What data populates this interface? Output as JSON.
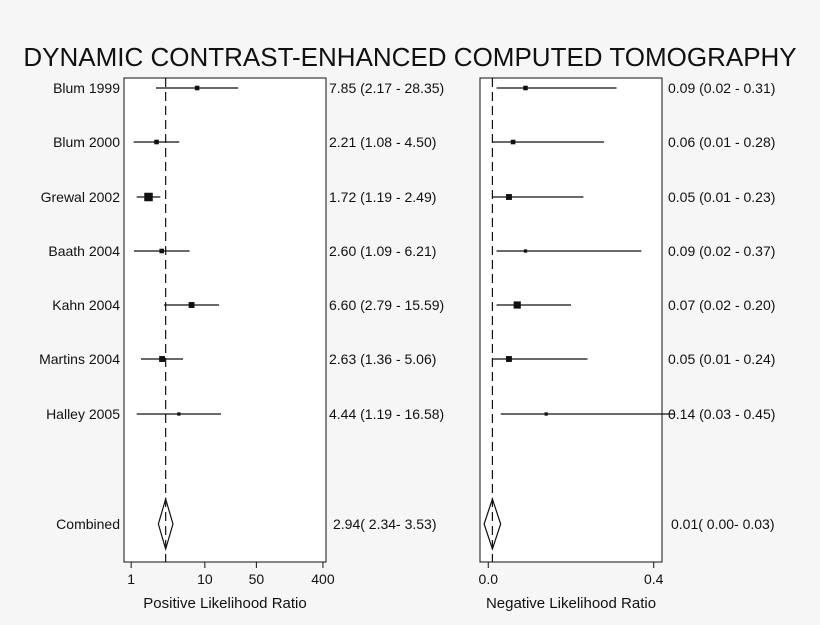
{
  "chart_data": {
    "type": "forest",
    "title": "DYNAMIC CONTRAST-ENHANCED COMPUTED TOMOGRAPHY",
    "studies": [
      "Blum 1999",
      "Blum 2000",
      "Grewal 2002",
      "Baath 2004",
      "Kahn 2004",
      "Martins 2004",
      "Halley 2005"
    ],
    "combined_label": "Combined",
    "positive": {
      "xlabel": "Positive Likelihood Ratio",
      "scale": "log",
      "xlim": [
        0.8,
        440
      ],
      "ticks": [
        1,
        10,
        50,
        400
      ],
      "tick_labels": [
        "1",
        "10",
        "50",
        "400"
      ],
      "reference": 2.94,
      "estimates": [
        7.85,
        2.21,
        1.72,
        2.6,
        6.6,
        2.63,
        4.44
      ],
      "lower": [
        2.17,
        1.08,
        1.19,
        1.09,
        2.79,
        1.36,
        1.19
      ],
      "upper": [
        28.35,
        4.5,
        2.49,
        6.21,
        15.59,
        5.06,
        16.58
      ],
      "labels": [
        "7.85 (2.17 - 28.35)",
        "2.21 (1.08 - 4.50)",
        "1.72 (1.19 - 2.49)",
        "2.60 (1.09 - 6.21)",
        "6.60 (2.79 - 15.59)",
        "2.63 (1.36 - 5.06)",
        "4.44 (1.19 - 16.58)"
      ],
      "weights": [
        2,
        2,
        5,
        2,
        3,
        3,
        1
      ],
      "combined": {
        "estimate": 2.94,
        "lower": 2.34,
        "upper": 3.53,
        "label": "2.94( 2.34- 3.53)"
      }
    },
    "negative": {
      "xlabel": "Negative Likelihood Ratio",
      "scale": "linear",
      "xlim": [
        -0.02,
        0.42
      ],
      "ticks": [
        0.0,
        0.4
      ],
      "tick_labels": [
        "0.0",
        "0.4"
      ],
      "reference": 0.01,
      "estimates": [
        0.09,
        0.06,
        0.05,
        0.09,
        0.07,
        0.05,
        0.14
      ],
      "lower": [
        0.02,
        0.01,
        0.01,
        0.02,
        0.02,
        0.01,
        0.03
      ],
      "upper": [
        0.31,
        0.28,
        0.23,
        0.37,
        0.2,
        0.24,
        0.45
      ],
      "labels": [
        "0.09 (0.02 - 0.31)",
        "0.06 (0.01 - 0.28)",
        "0.05 (0.01 - 0.23)",
        "0.09 (0.02 - 0.37)",
        "0.07 (0.02 - 0.20)",
        "0.05 (0.01 - 0.24)",
        "0.14 (0.03 - 0.45)"
      ],
      "weights": [
        2,
        2,
        3,
        1,
        4,
        3,
        1
      ],
      "combined": {
        "estimate": 0.01,
        "lower": 0.0,
        "upper": 0.03,
        "label": "0.01( 0.00- 0.03)"
      }
    },
    "colors": {
      "ink": "#111111",
      "background": "#f6f6f6",
      "panel": "#ffffff"
    }
  }
}
